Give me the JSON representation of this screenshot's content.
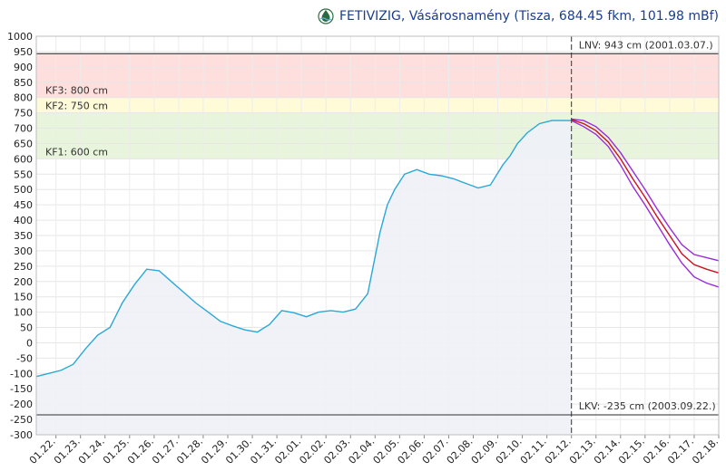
{
  "header": {
    "title": "FETIVIZIG, Vásárosnamény (Tisza, 684.45 fkm, 101.98 mBf)",
    "logo_icon": "water-drop-logo-icon"
  },
  "chart_data": {
    "type": "line",
    "ylim": [
      -300,
      1000
    ],
    "yticks": [
      1000,
      950,
      900,
      850,
      800,
      750,
      700,
      650,
      600,
      550,
      500,
      450,
      400,
      350,
      300,
      250,
      200,
      150,
      100,
      50,
      0,
      -50,
      -100,
      -150,
      -200,
      -250,
      -300
    ],
    "xlim": [
      0,
      27.8
    ],
    "xtick_labels": [
      "01.22.",
      "01.23.",
      "01.24.",
      "01.25.",
      "01.26.",
      "01.27.",
      "01.28.",
      "01.29.",
      "01.30.",
      "01.31.",
      "02.01.",
      "02.02.",
      "02.03.",
      "02.04.",
      "02.05.",
      "02.06.",
      "02.07.",
      "02.08.",
      "02.09.",
      "02.10.",
      "02.11.",
      "02.12.",
      "02.13.",
      "02.14.",
      "02.15.",
      "02.16.",
      "02.17.",
      "02.18."
    ],
    "xtick_positions": [
      0.8,
      1.8,
      2.8,
      3.8,
      4.8,
      5.8,
      6.8,
      7.8,
      8.8,
      9.8,
      10.8,
      11.8,
      12.8,
      13.8,
      14.8,
      15.8,
      16.8,
      17.8,
      18.8,
      19.8,
      20.8,
      21.8,
      22.8,
      23.8,
      24.8,
      25.8,
      26.8,
      27.8
    ],
    "bands": [
      {
        "from": 800,
        "to": 943,
        "color": "#ffdede"
      },
      {
        "from": 750,
        "to": 800,
        "color": "#fffbd9"
      },
      {
        "from": 600,
        "to": 750,
        "color": "#e8f5dc"
      }
    ],
    "threshold_labels": [
      {
        "value": 800,
        "label": "KF3: 800 cm"
      },
      {
        "value": 750,
        "label": "KF2: 750 cm"
      },
      {
        "value": 600,
        "label": "KF1: 600 cm"
      }
    ],
    "reference_lines": [
      {
        "value": 943,
        "label": "LNV: 943 cm (2001.03.07.)"
      },
      {
        "value": -235,
        "label": "LKV: -235 cm (2003.09.22.)"
      }
    ],
    "forecast_start_x": 21.8,
    "series": [
      {
        "color": "#2aa8d8",
        "fill": "#eef1f7",
        "x": [
          0,
          0.5,
          1.0,
          1.5,
          2.0,
          2.5,
          3.0,
          3.5,
          4.0,
          4.5,
          5.0,
          5.5,
          6.0,
          6.5,
          7.0,
          7.5,
          8.0,
          8.5,
          9.0,
          9.5,
          10.0,
          10.5,
          11.0,
          11.5,
          12.0,
          12.5,
          13.0,
          13.5,
          14.0,
          14.3,
          14.6,
          15.0,
          15.5,
          16.0,
          16.5,
          17.0,
          17.5,
          18.0,
          18.5,
          19.0,
          19.3,
          19.6,
          20.0,
          20.5,
          21.0,
          21.5,
          21.8
        ],
        "y": [
          -110,
          -100,
          -90,
          -70,
          -20,
          25,
          50,
          130,
          190,
          240,
          235,
          200,
          165,
          130,
          100,
          70,
          55,
          42,
          35,
          60,
          105,
          98,
          85,
          100,
          105,
          100,
          110,
          160,
          360,
          450,
          500,
          550,
          565,
          550,
          545,
          535,
          520,
          505,
          515,
          580,
          610,
          650,
          685,
          715,
          725,
          725,
          725
        ]
      },
      {
        "color": "#9a2bd6",
        "x": [
          21.8,
          22.3,
          22.8,
          23.3,
          23.8,
          24.3,
          24.8,
          25.3,
          25.8,
          26.3,
          26.8,
          27.3,
          27.8
        ],
        "y": [
          730,
          725,
          705,
          670,
          620,
          560,
          500,
          435,
          375,
          320,
          288,
          278,
          268
        ]
      },
      {
        "color": "#cc1020",
        "x": [
          21.8,
          22.3,
          22.8,
          23.3,
          23.8,
          24.3,
          24.8,
          25.3,
          25.8,
          26.3,
          26.8,
          27.3,
          27.8
        ],
        "y": [
          728,
          715,
          692,
          655,
          600,
          535,
          475,
          410,
          350,
          290,
          255,
          240,
          228
        ]
      },
      {
        "color": "#9a2bd6",
        "x": [
          21.8,
          22.3,
          22.8,
          23.3,
          23.8,
          24.3,
          24.8,
          25.3,
          25.8,
          26.3,
          26.8,
          27.3,
          27.8
        ],
        "y": [
          725,
          705,
          680,
          640,
          580,
          510,
          450,
          385,
          320,
          260,
          215,
          195,
          182
        ]
      }
    ]
  }
}
